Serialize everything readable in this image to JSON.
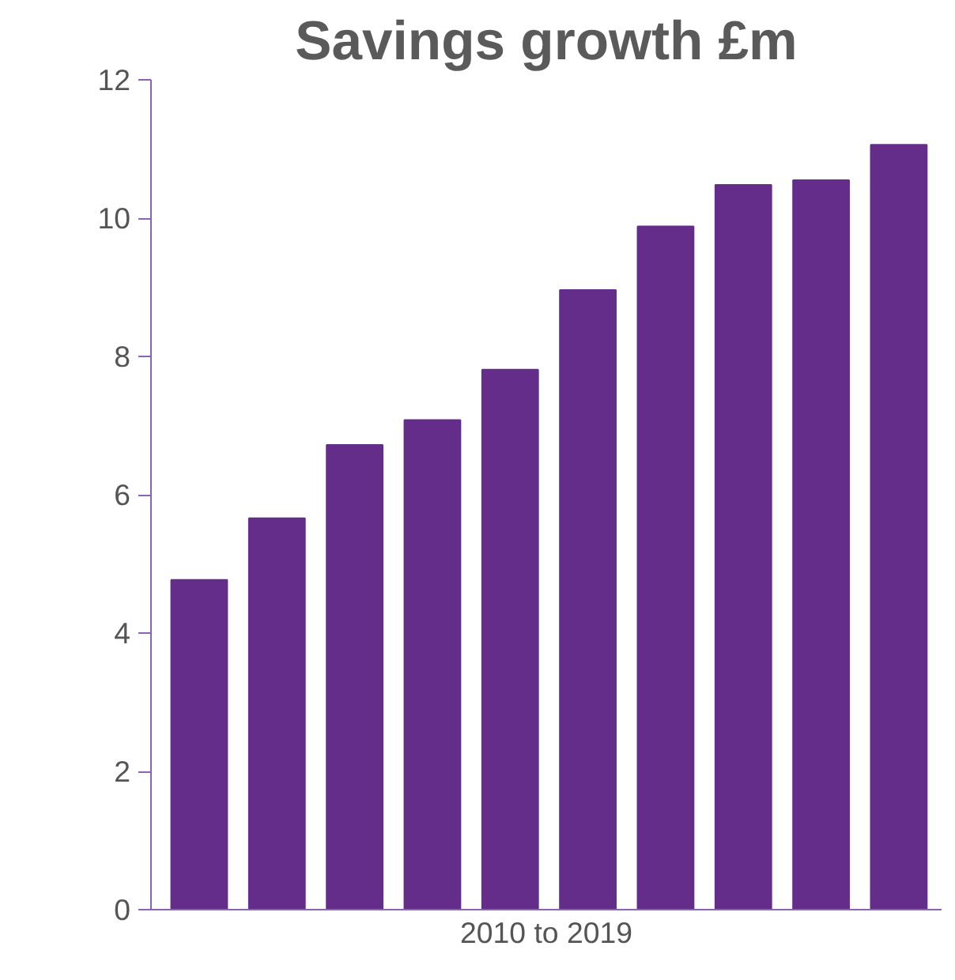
{
  "chart_data": {
    "type": "bar",
    "title": "Savings growth £m",
    "xlabel": "2010 to 2019",
    "categories": [
      null,
      null,
      null,
      null,
      null,
      null,
      null,
      null,
      null,
      null
    ],
    "values": [
      4.77,
      5.66,
      6.72,
      7.08,
      7.81,
      8.96,
      9.88,
      10.48,
      10.55,
      11.06
    ],
    "color": "#652d8a",
    "ylim": [
      0,
      12
    ],
    "yticks": [
      0,
      2,
      4,
      6,
      8,
      10,
      12
    ],
    "grid": false
  }
}
